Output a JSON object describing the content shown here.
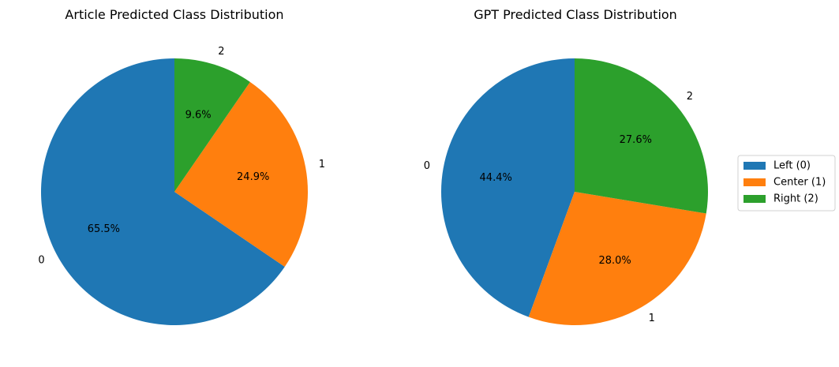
{
  "colors": {
    "series_0": "#1f77b4",
    "series_1": "#ff7f0e",
    "series_2": "#2ca02c"
  },
  "chart_data": [
    {
      "type": "pie",
      "title": "Article Predicted Class Distribution",
      "categories": [
        "0",
        "1",
        "2"
      ],
      "values": [
        65.5,
        24.9,
        9.6
      ],
      "value_labels": [
        "65.5%",
        "24.9%",
        "9.6%"
      ],
      "start_angle": 90,
      "direction": "counterclockwise"
    },
    {
      "type": "pie",
      "title": "GPT Predicted Class Distribution",
      "categories": [
        "0",
        "1",
        "2"
      ],
      "values": [
        44.4,
        28.0,
        27.6
      ],
      "value_labels": [
        "44.4%",
        "28.0%",
        "27.6%"
      ],
      "start_angle": 90,
      "direction": "counterclockwise",
      "legend": {
        "placement": "right",
        "entries": [
          "Left (0)",
          "Center (1)",
          "Right (2)"
        ]
      }
    }
  ]
}
